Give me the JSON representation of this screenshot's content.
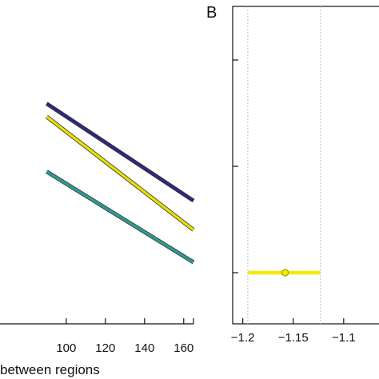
{
  "chart_data": [
    {
      "panel": "A",
      "type": "line",
      "xlabel": "between regions",
      "xlim": [
        0,
        165
      ],
      "ylim": [
        0,
        1
      ],
      "x_ticks": [
        100,
        120,
        140,
        160
      ],
      "series": [
        {
          "color": "#2e2a7a",
          "x": [
            90,
            165
          ],
          "y": [
            0.68,
            0.38
          ]
        },
        {
          "color": "#e8e000",
          "x": [
            90,
            165
          ],
          "y": [
            0.64,
            0.29
          ]
        },
        {
          "color": "#2a9d8f",
          "x": [
            90,
            165
          ],
          "y": [
            0.47,
            0.19
          ]
        }
      ],
      "grid": false
    },
    {
      "panel": "B",
      "type": "scatter",
      "title_label": "B",
      "xlim": [
        -1.21,
        -1.065
      ],
      "x_ticks": [
        -1.2,
        -1.15,
        -1.1
      ],
      "x_tick_labels": [
        "−1.2",
        "−1.15",
        "−1.1"
      ],
      "y_ticks_count": 3,
      "reference_lines_x": [
        -1.195,
        -1.123
      ],
      "points": [
        {
          "x": -1.158,
          "xerr_low": -1.195,
          "xerr_high": -1.123,
          "color": "#f2ea00"
        }
      ],
      "grid": false
    }
  ]
}
